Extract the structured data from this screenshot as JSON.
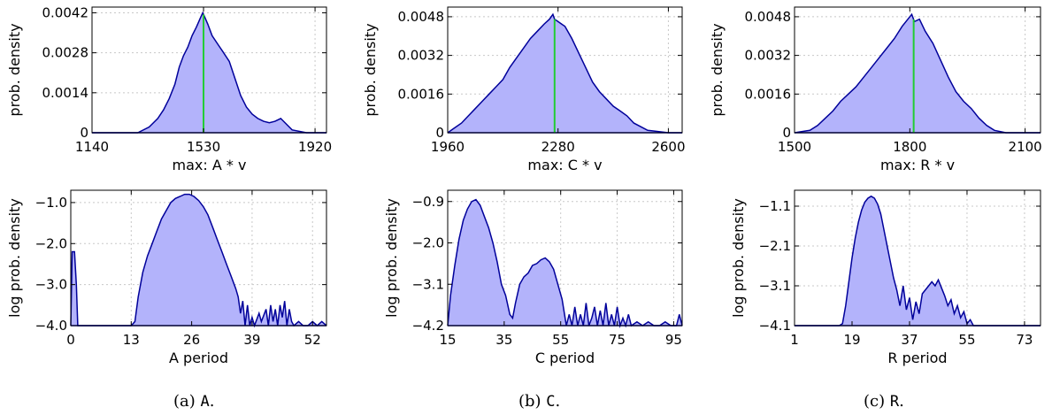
{
  "colors": {
    "fill": "#b3b3fb",
    "line": "#00009a",
    "marker": "#22cc33",
    "grid": "#c8c8c8"
  },
  "captions": [
    {
      "label": "(a) ",
      "code": "A",
      "end": "."
    },
    {
      "label": "(b) ",
      "code": "C",
      "end": "."
    },
    {
      "label": "(c) ",
      "code": "R",
      "end": "."
    }
  ],
  "chart_data": [
    {
      "type": "area",
      "panel": "a-top",
      "xlabel": "max: A * v",
      "ylabel": "prob. density",
      "xlim": [
        1140,
        1960
      ],
      "ylim": [
        0,
        0.0044
      ],
      "xticks": [
        1140,
        1530,
        1920
      ],
      "xticklabels": [
        "1140",
        "1530",
        "1920"
      ],
      "yticks": [
        0,
        0.0014,
        0.0028,
        0.0042
      ],
      "yticklabels": [
        "0",
        "0.0014",
        "0.0028",
        "0.0042"
      ],
      "marker_x": 1530,
      "x": [
        1140,
        1300,
        1340,
        1370,
        1390,
        1410,
        1430,
        1445,
        1460,
        1475,
        1490,
        1505,
        1518,
        1527,
        1532,
        1545,
        1560,
        1580,
        1600,
        1620,
        1640,
        1660,
        1680,
        1700,
        1720,
        1740,
        1760,
        1780,
        1800,
        1840,
        1890,
        1960
      ],
      "y": [
        0,
        0,
        0.0002,
        0.0005,
        0.0008,
        0.0012,
        0.0017,
        0.0023,
        0.0027,
        0.003,
        0.0034,
        0.0037,
        0.004,
        0.0042,
        0.0041,
        0.0038,
        0.0034,
        0.0031,
        0.0028,
        0.0025,
        0.0019,
        0.0013,
        0.0009,
        0.00065,
        0.0005,
        0.0004,
        0.00035,
        0.0004,
        0.0005,
        0.0001,
        0,
        0
      ]
    },
    {
      "type": "area",
      "panel": "b-top",
      "xlabel": "max: C * v",
      "ylabel": "prob. density",
      "xlim": [
        1960,
        2640
      ],
      "ylim": [
        0,
        0.0052
      ],
      "xticks": [
        1960,
        2280,
        2600
      ],
      "xticklabels": [
        "1960",
        "2280",
        "2600"
      ],
      "yticks": [
        0,
        0.0016,
        0.0032,
        0.0048
      ],
      "yticklabels": [
        "0",
        "0.0016",
        "0.0032",
        "0.0048"
      ],
      "marker_x": 2270,
      "x": [
        1960,
        1980,
        2000,
        2020,
        2040,
        2060,
        2080,
        2100,
        2120,
        2140,
        2160,
        2180,
        2200,
        2220,
        2240,
        2255,
        2265,
        2270,
        2280,
        2300,
        2320,
        2340,
        2360,
        2380,
        2400,
        2420,
        2440,
        2460,
        2480,
        2500,
        2540,
        2600,
        2640
      ],
      "y": [
        0,
        0.0002,
        0.0004,
        0.0007,
        0.001,
        0.0013,
        0.0016,
        0.0019,
        0.0022,
        0.0027,
        0.0031,
        0.0035,
        0.0039,
        0.0042,
        0.0045,
        0.0047,
        0.0049,
        0.0047,
        0.0046,
        0.0044,
        0.0039,
        0.0033,
        0.0027,
        0.0021,
        0.0017,
        0.0014,
        0.0011,
        0.0009,
        0.0007,
        0.0004,
        0.0001,
        0,
        0
      ]
    },
    {
      "type": "area",
      "panel": "c-top",
      "xlabel": "max: R * v",
      "ylabel": "prob. density",
      "xlim": [
        1500,
        2140
      ],
      "ylim": [
        0,
        0.0052
      ],
      "xticks": [
        1500,
        1800,
        2100
      ],
      "xticklabels": [
        "1500",
        "1800",
        "2100"
      ],
      "yticks": [
        0,
        0.0016,
        0.0032,
        0.0048
      ],
      "yticklabels": [
        "0",
        "0.0016",
        "0.0032",
        "0.0048"
      ],
      "marker_x": 1810,
      "x": [
        1500,
        1540,
        1560,
        1580,
        1600,
        1620,
        1640,
        1660,
        1680,
        1700,
        1720,
        1740,
        1760,
        1780,
        1795,
        1805,
        1812,
        1825,
        1840,
        1860,
        1880,
        1900,
        1920,
        1940,
        1960,
        1980,
        2000,
        2020,
        2050,
        2100,
        2140
      ],
      "y": [
        0,
        0.0001,
        0.0003,
        0.0006,
        0.0009,
        0.0013,
        0.0016,
        0.0019,
        0.0023,
        0.0027,
        0.0031,
        0.0035,
        0.0039,
        0.0044,
        0.0047,
        0.0049,
        0.0046,
        0.0047,
        0.0042,
        0.0037,
        0.003,
        0.0023,
        0.0017,
        0.0013,
        0.001,
        0.0006,
        0.0003,
        0.0001,
        0,
        0,
        0
      ]
    },
    {
      "type": "area",
      "panel": "a-bottom",
      "xlabel": "A period",
      "ylabel": "log prob. density",
      "xlim": [
        0,
        55
      ],
      "ylim": [
        -4.0,
        -0.7
      ],
      "xticks": [
        0,
        13,
        26,
        39,
        52
      ],
      "xticklabels": [
        "0",
        "13",
        "26",
        "39",
        "52"
      ],
      "yticks": [
        -4.0,
        -3.0,
        -2.0,
        -1.0
      ],
      "yticklabels": [
        "−4.0",
        "−3.0",
        "−2.0",
        "−1.0"
      ],
      "x": [
        0,
        0.3,
        0.8,
        1.2,
        1.5,
        2,
        13,
        13.8,
        14.5,
        15.5,
        16.5,
        17.5,
        18.5,
        19.5,
        20.5,
        21.5,
        22.5,
        23.5,
        24.5,
        25.5,
        26.5,
        27.5,
        28.5,
        29.5,
        30.5,
        31.5,
        32.5,
        33.5,
        34.5,
        35.5,
        36,
        36.5,
        37,
        37.5,
        38,
        38.5,
        39,
        39.5,
        40.5,
        41,
        42,
        42.5,
        43,
        43.5,
        44,
        44.5,
        45,
        45.5,
        46,
        46.5,
        47,
        47.5,
        48,
        49,
        50,
        51,
        52,
        53,
        54,
        55
      ],
      "y": [
        -4.0,
        -2.2,
        -2.2,
        -3.0,
        -4.0,
        -4.0,
        -4.0,
        -3.9,
        -3.3,
        -2.7,
        -2.3,
        -2.0,
        -1.7,
        -1.4,
        -1.2,
        -1.0,
        -0.9,
        -0.85,
        -0.8,
        -0.8,
        -0.85,
        -0.95,
        -1.1,
        -1.3,
        -1.6,
        -1.9,
        -2.2,
        -2.5,
        -2.8,
        -3.1,
        -3.3,
        -3.7,
        -3.4,
        -4.0,
        -3.5,
        -4.0,
        -3.8,
        -4.0,
        -3.7,
        -3.9,
        -3.6,
        -4.0,
        -3.5,
        -3.9,
        -3.6,
        -4.0,
        -3.5,
        -3.8,
        -3.4,
        -4.0,
        -3.6,
        -3.9,
        -4.0,
        -3.9,
        -4.0,
        -4.0,
        -3.9,
        -4.0,
        -3.9,
        -4.0
      ]
    },
    {
      "type": "area",
      "panel": "b-bottom",
      "xlabel": "C period",
      "ylabel": "log prob. density",
      "xlim": [
        15,
        98
      ],
      "ylim": [
        -4.2,
        -0.6
      ],
      "xticks": [
        15,
        35,
        55,
        75,
        95
      ],
      "xticklabels": [
        "15",
        "35",
        "55",
        "75",
        "95"
      ],
      "yticks": [
        -4.2,
        -3.1,
        -2.0,
        -0.9
      ],
      "yticklabels": [
        "−4.2",
        "−3.1",
        "−2.0",
        "−0.9"
      ],
      "x": [
        15,
        16,
        17.5,
        19,
        20.5,
        22,
        23.5,
        25,
        26.5,
        28,
        29.5,
        31,
        32.5,
        34,
        35.5,
        37,
        38,
        39,
        40.5,
        42,
        43.5,
        45,
        46.5,
        48,
        49.5,
        51,
        52.5,
        54,
        55.5,
        57,
        58,
        59,
        60,
        61,
        62,
        63,
        64,
        65,
        66,
        67,
        68,
        69,
        70,
        71,
        72,
        73,
        74,
        75,
        76,
        77,
        78,
        79,
        80,
        82,
        84,
        86,
        88,
        90,
        92,
        94,
        96,
        97,
        98
      ],
      "y": [
        -4.2,
        -3.4,
        -2.6,
        -1.9,
        -1.4,
        -1.1,
        -0.9,
        -0.85,
        -1.0,
        -1.3,
        -1.6,
        -2.0,
        -2.5,
        -3.1,
        -3.4,
        -3.9,
        -4.0,
        -3.6,
        -3.1,
        -2.9,
        -2.8,
        -2.6,
        -2.55,
        -2.45,
        -2.4,
        -2.5,
        -2.7,
        -3.1,
        -3.5,
        -4.2,
        -3.9,
        -4.2,
        -3.7,
        -4.2,
        -3.9,
        -4.2,
        -3.6,
        -4.2,
        -4.0,
        -3.7,
        -4.2,
        -3.8,
        -4.2,
        -3.6,
        -4.2,
        -3.9,
        -4.2,
        -3.7,
        -4.2,
        -4.0,
        -4.2,
        -3.9,
        -4.2,
        -4.1,
        -4.2,
        -4.1,
        -4.2,
        -4.2,
        -4.1,
        -4.2,
        -4.2,
        -3.9,
        -4.2
      ]
    },
    {
      "type": "area",
      "panel": "c-bottom",
      "xlabel": "R period",
      "ylabel": "log prob. density",
      "xlim": [
        1,
        78
      ],
      "ylim": [
        -4.1,
        -0.7
      ],
      "xticks": [
        1,
        19,
        37,
        55,
        73
      ],
      "xticklabels": [
        "1",
        "19",
        "37",
        "55",
        "73"
      ],
      "yticks": [
        -4.1,
        -3.1,
        -2.1,
        -1.1
      ],
      "yticklabels": [
        "−4.1",
        "−3.1",
        "−2.1",
        "−1.1"
      ],
      "x": [
        1,
        15,
        16,
        17,
        18,
        19,
        20,
        21,
        22,
        23,
        24,
        25,
        26,
        27,
        28,
        29,
        30,
        31,
        32,
        33,
        34,
        35,
        36,
        37,
        38,
        39,
        40,
        41,
        42,
        43,
        44,
        45,
        46,
        47,
        48,
        49,
        50,
        51,
        52,
        53,
        54,
        55,
        56,
        57,
        60,
        65,
        70,
        75,
        78
      ],
      "y": [
        -4.1,
        -4.1,
        -4.05,
        -3.6,
        -3.0,
        -2.4,
        -1.9,
        -1.5,
        -1.2,
        -1.0,
        -0.9,
        -0.85,
        -0.9,
        -1.05,
        -1.3,
        -1.7,
        -2.1,
        -2.5,
        -2.9,
        -3.2,
        -3.6,
        -3.1,
        -3.7,
        -3.4,
        -3.95,
        -3.5,
        -3.8,
        -3.3,
        -3.2,
        -3.1,
        -3.0,
        -3.1,
        -2.95,
        -3.15,
        -3.35,
        -3.6,
        -3.45,
        -3.8,
        -3.6,
        -3.9,
        -3.75,
        -4.05,
        -3.95,
        -4.1,
        -4.1,
        -4.1,
        -4.1,
        -4.1,
        -4.1
      ]
    }
  ]
}
